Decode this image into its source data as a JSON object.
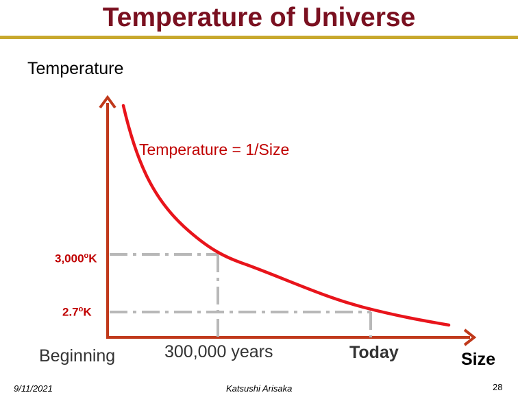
{
  "slide": {
    "title": "Temperature of Universe",
    "footer": {
      "date": "9/11/2021",
      "author": "Katsushi Arisaka",
      "page_number": "28"
    }
  },
  "diagram": {
    "y_axis_label": "Temperature",
    "x_axis_label": "Size",
    "curve_label": "Temperature = 1/Size",
    "temperature_markers": {
      "recombination": {
        "value": "3,000",
        "unit_sup": "o",
        "unit": "K"
      },
      "today": {
        "value": "2.7",
        "unit_sup": "o",
        "unit": "K"
      }
    },
    "x_markers": {
      "beginning": "Beginning",
      "recombination_time": "300,000 years",
      "today": "Today"
    }
  },
  "colors": {
    "title": "#7a1020",
    "title_rule": "#c8a82e",
    "axes": "#c0391b",
    "curve": "#e8141b",
    "guide_lines": "#b8b8b8",
    "labels_red": "#c00000"
  }
}
